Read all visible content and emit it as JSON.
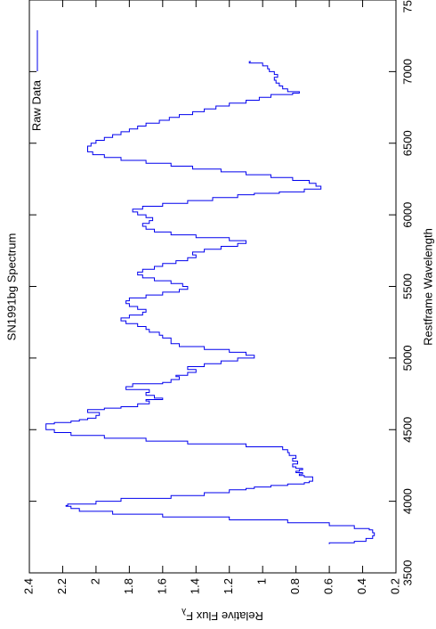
{
  "chart_data": {
    "type": "line",
    "title": "SN1991bg Spectrum",
    "xlabel": "Restframe Wavelength",
    "ylabel": "Relative Flux F",
    "ylabel_subscript": "λ",
    "xlim": [
      3500,
      7500
    ],
    "ylim": [
      0.2,
      2.4
    ],
    "xticks": [
      "3500",
      "4000",
      "4500",
      "5000",
      "5500",
      "6000",
      "6500",
      "7000",
      "7500"
    ],
    "yticks": [
      "0.2",
      "0.4",
      "0.6",
      "0.8",
      "1",
      "1.2",
      "1.4",
      "1.6",
      "1.8",
      "2",
      "2.2",
      "2.4"
    ],
    "legend": {
      "position": "top-right",
      "entries": [
        "Raw Data"
      ]
    },
    "series": [
      {
        "name": "Raw Data",
        "color": "#0000ee",
        "step": true,
        "x": [
          3700,
          3710,
          3720,
          3740,
          3760,
          3780,
          3800,
          3810,
          3830,
          3850,
          3870,
          3890,
          3910,
          3930,
          3950,
          3965,
          3970,
          3980,
          4000,
          4020,
          4040,
          4060,
          4080,
          4090,
          4100,
          4110,
          4120,
          4130,
          4140,
          4150,
          4170,
          4180,
          4190,
          4200,
          4210,
          4220,
          4230,
          4240,
          4260,
          4280,
          4300,
          4320,
          4340,
          4360,
          4380,
          4400,
          4420,
          4440,
          4460,
          4480,
          4500,
          4520,
          4540,
          4550,
          4560,
          4570,
          4580,
          4600,
          4620,
          4640,
          4650,
          4660,
          4680,
          4700,
          4710,
          4720,
          4740,
          4760,
          4780,
          4800,
          4820,
          4830,
          4850,
          4870,
          4880,
          4900,
          4920,
          4940,
          4960,
          4980,
          5000,
          5020,
          5040,
          5060,
          5080,
          5100,
          5120,
          5140,
          5160,
          5180,
          5200,
          5220,
          5240,
          5260,
          5280,
          5300,
          5320,
          5340,
          5360,
          5380,
          5400,
          5420,
          5440,
          5460,
          5480,
          5500,
          5520,
          5540,
          5560,
          5580,
          5600,
          5620,
          5640,
          5660,
          5680,
          5700,
          5720,
          5740,
          5760,
          5780,
          5800,
          5820,
          5840,
          5860,
          5880,
          5900,
          5920,
          5940,
          5960,
          5980,
          6000,
          6020,
          6040,
          6060,
          6080,
          6100,
          6120,
          6140,
          6150,
          6160,
          6180,
          6200,
          6220,
          6240,
          6260,
          6280,
          6300,
          6320,
          6340,
          6360,
          6380,
          6400,
          6420,
          6440,
          6460,
          6480,
          6500,
          6520,
          6540,
          6560,
          6580,
          6600,
          6620,
          6640,
          6660,
          6680,
          6700,
          6720,
          6740,
          6760,
          6780,
          6800,
          6820,
          6840,
          6850,
          6860,
          6880,
          6900,
          6920,
          6940,
          6960,
          6980,
          7000,
          7020,
          7040,
          7060,
          7070
        ],
        "y": [
          0.6,
          0.45,
          0.38,
          0.34,
          0.33,
          0.34,
          0.36,
          0.45,
          0.6,
          0.85,
          1.2,
          1.6,
          1.9,
          2.1,
          2.15,
          2.18,
          2.17,
          2.0,
          1.85,
          1.55,
          1.35,
          1.2,
          1.1,
          1.05,
          0.95,
          0.85,
          0.75,
          0.72,
          0.7,
          0.7,
          0.75,
          0.78,
          0.76,
          0.8,
          0.78,
          0.76,
          0.8,
          0.82,
          0.79,
          0.82,
          0.8,
          0.84,
          0.85,
          0.88,
          1.1,
          1.45,
          1.7,
          1.95,
          2.15,
          2.25,
          2.3,
          2.3,
          2.25,
          2.15,
          2.1,
          2.05,
          2.0,
          1.98,
          2.05,
          1.95,
          1.85,
          1.75,
          1.68,
          1.7,
          1.6,
          1.65,
          1.7,
          1.68,
          1.82,
          1.78,
          1.6,
          1.55,
          1.5,
          1.52,
          1.45,
          1.4,
          1.45,
          1.35,
          1.25,
          1.15,
          1.05,
          1.1,
          1.2,
          1.35,
          1.5,
          1.55,
          1.55,
          1.6,
          1.62,
          1.68,
          1.7,
          1.75,
          1.82,
          1.85,
          1.8,
          1.72,
          1.7,
          1.75,
          1.8,
          1.82,
          1.8,
          1.7,
          1.6,
          1.5,
          1.45,
          1.48,
          1.55,
          1.65,
          1.72,
          1.75,
          1.72,
          1.65,
          1.6,
          1.52,
          1.45,
          1.4,
          1.42,
          1.35,
          1.25,
          1.15,
          1.1,
          1.2,
          1.4,
          1.55,
          1.65,
          1.7,
          1.72,
          1.68,
          1.66,
          1.7,
          1.75,
          1.78,
          1.72,
          1.6,
          1.45,
          1.3,
          1.15,
          1.05,
          0.9,
          0.75,
          0.65,
          0.68,
          0.72,
          0.82,
          0.95,
          1.1,
          1.25,
          1.42,
          1.55,
          1.7,
          1.85,
          1.95,
          2.02,
          2.05,
          2.05,
          2.03,
          2.0,
          1.95,
          1.9,
          1.85,
          1.8,
          1.75,
          1.7,
          1.62,
          1.56,
          1.5,
          1.42,
          1.35,
          1.28,
          1.2,
          1.1,
          1.02,
          0.95,
          0.82,
          0.78,
          0.85,
          0.88,
          0.9,
          0.92,
          0.93,
          0.91,
          0.93,
          0.96,
          0.97,
          1.0,
          1.08,
          1.07
        ]
      }
    ]
  }
}
